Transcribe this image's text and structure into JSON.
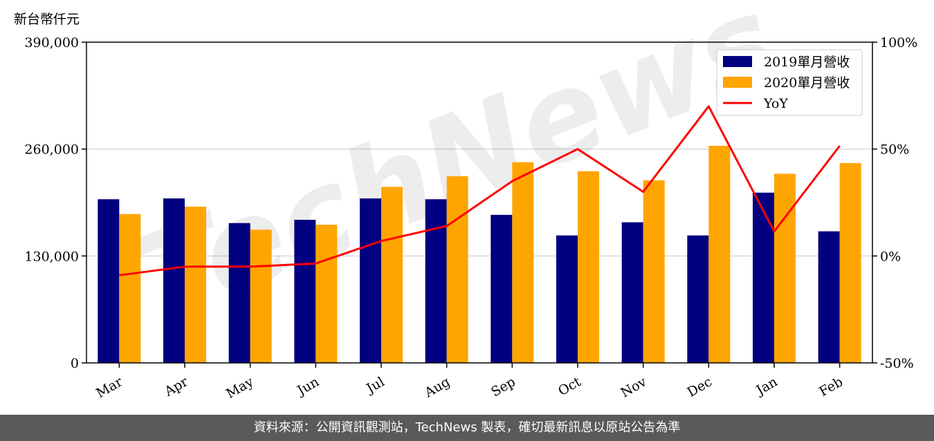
{
  "chart_data": {
    "type": "bar",
    "y_unit_label": "新台幣仟元",
    "categories": [
      "Mar",
      "Apr",
      "May",
      "Jun",
      "Jul",
      "Aug",
      "Sep",
      "Oct",
      "Nov",
      "Dec",
      "Jan",
      "Feb"
    ],
    "series": [
      {
        "name": "2019單月營收",
        "type": "bar",
        "axis": "left",
        "color": "#000080",
        "values": [
          199000,
          200000,
          170000,
          174000,
          200000,
          199000,
          180000,
          155000,
          171000,
          155000,
          207000,
          160000
        ]
      },
      {
        "name": "2020單月營收",
        "type": "bar",
        "axis": "left",
        "color": "#FFA500",
        "values": [
          181000,
          190000,
          162000,
          168000,
          214000,
          227000,
          244000,
          233000,
          222000,
          264000,
          230000,
          243000
        ]
      },
      {
        "name": "YoY",
        "type": "line",
        "axis": "right",
        "color": "#FF0000",
        "values": [
          -9,
          -5,
          -5,
          -3.5,
          7,
          14,
          35,
          50,
          30,
          70,
          11.5,
          51.5
        ]
      }
    ],
    "ylim_left": [
      0,
      390000
    ],
    "yticks_left": [
      {
        "value": 0,
        "label": "0"
      },
      {
        "value": 130000,
        "label": "130,000"
      },
      {
        "value": 260000,
        "label": "260,000"
      },
      {
        "value": 390000,
        "label": "390,000"
      }
    ],
    "ylim_right": [
      -50,
      100
    ],
    "yticks_right": [
      {
        "value": -50,
        "label": "-50%"
      },
      {
        "value": 0,
        "label": "0%"
      },
      {
        "value": 50,
        "label": "50%"
      },
      {
        "value": 100,
        "label": "100%"
      }
    ],
    "grid": "horizontal",
    "legend_position": "top-right",
    "watermark": "TechNews"
  },
  "footer": {
    "source_text": "資料來源：公開資訊觀測站，TechNews 製表，確切最新訊息以原站公告為準"
  }
}
